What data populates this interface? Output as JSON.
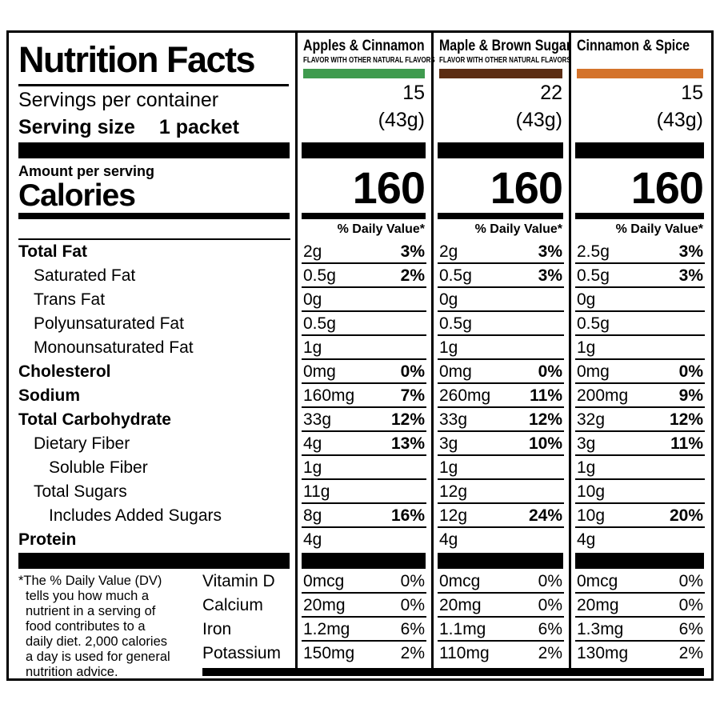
{
  "label": {
    "title": "Nutrition Facts",
    "servings_per_container_label": "Servings per container",
    "serving_size_label": "Serving size",
    "serving_size_value": "1 packet",
    "amount_per_serving": "Amount per serving",
    "calories_label": "Calories",
    "daily_value_header": "% Daily Value*",
    "footnote": "*The % Daily Value (DV)\ntells you how much a\nnutrient in a serving of\nfood contributes to a\ndaily diet. 2,000 calories\na day is used for general\nnutrition advice."
  },
  "flavors": [
    {
      "name": "Apples & Cinnamon",
      "subtitle": "FLAVOR WITH OTHER NATURAL FLAVORS",
      "color": "#3f9b4e",
      "servings": "15",
      "serving_weight": "(43g)",
      "calories": "160"
    },
    {
      "name": "Maple & Brown Sugar",
      "subtitle": "FLAVOR WITH OTHER NATURAL FLAVORS",
      "color": "#5b2d13",
      "servings": "22",
      "serving_weight": "(43g)",
      "calories": "160"
    },
    {
      "name": "Cinnamon & Spice",
      "subtitle": "",
      "color": "#d4732b",
      "servings": "15",
      "serving_weight": "(43g)",
      "calories": "160"
    }
  ],
  "nutrients": [
    {
      "name": "Total Fat",
      "bold": true,
      "indent": 0,
      "values": [
        {
          "amount": "2g",
          "dv": "3%"
        },
        {
          "amount": "2g",
          "dv": "3%"
        },
        {
          "amount": "2.5g",
          "dv": "3%"
        }
      ]
    },
    {
      "name": "Saturated Fat",
      "bold": false,
      "indent": 1,
      "values": [
        {
          "amount": "0.5g",
          "dv": "2%"
        },
        {
          "amount": "0.5g",
          "dv": "3%"
        },
        {
          "amount": "0.5g",
          "dv": "3%"
        }
      ]
    },
    {
      "name": "Trans Fat",
      "bold": false,
      "indent": 1,
      "values": [
        {
          "amount": "0g",
          "dv": ""
        },
        {
          "amount": "0g",
          "dv": ""
        },
        {
          "amount": "0g",
          "dv": ""
        }
      ]
    },
    {
      "name": "Polyunsaturated Fat",
      "bold": false,
      "indent": 1,
      "values": [
        {
          "amount": "0.5g",
          "dv": ""
        },
        {
          "amount": "0.5g",
          "dv": ""
        },
        {
          "amount": "0.5g",
          "dv": ""
        }
      ]
    },
    {
      "name": "Monounsaturated Fat",
      "bold": false,
      "indent": 1,
      "values": [
        {
          "amount": "1g",
          "dv": ""
        },
        {
          "amount": "1g",
          "dv": ""
        },
        {
          "amount": "1g",
          "dv": ""
        }
      ]
    },
    {
      "name": "Cholesterol",
      "bold": true,
      "indent": 0,
      "values": [
        {
          "amount": "0mg",
          "dv": "0%"
        },
        {
          "amount": "0mg",
          "dv": "0%"
        },
        {
          "amount": "0mg",
          "dv": "0%"
        }
      ]
    },
    {
      "name": "Sodium",
      "bold": true,
      "indent": 0,
      "values": [
        {
          "amount": "160mg",
          "dv": "7%"
        },
        {
          "amount": "260mg",
          "dv": "11%"
        },
        {
          "amount": "200mg",
          "dv": "9%"
        }
      ]
    },
    {
      "name": "Total Carbohydrate",
      "bold": true,
      "indent": 0,
      "values": [
        {
          "amount": "33g",
          "dv": "12%"
        },
        {
          "amount": "33g",
          "dv": "12%"
        },
        {
          "amount": "32g",
          "dv": "12%"
        }
      ]
    },
    {
      "name": "Dietary Fiber",
      "bold": false,
      "indent": 1,
      "values": [
        {
          "amount": "4g",
          "dv": "13%"
        },
        {
          "amount": "3g",
          "dv": "10%"
        },
        {
          "amount": "3g",
          "dv": "11%"
        }
      ]
    },
    {
      "name": "Soluble Fiber",
      "bold": false,
      "indent": 2,
      "values": [
        {
          "amount": "1g",
          "dv": ""
        },
        {
          "amount": "1g",
          "dv": ""
        },
        {
          "amount": "1g",
          "dv": ""
        }
      ]
    },
    {
      "name": "Total Sugars",
      "bold": false,
      "indent": 1,
      "values": [
        {
          "amount": "11g",
          "dv": ""
        },
        {
          "amount": "12g",
          "dv": ""
        },
        {
          "amount": "10g",
          "dv": ""
        }
      ]
    },
    {
      "name": "Includes Added Sugars",
      "bold": false,
      "indent": 2,
      "values": [
        {
          "amount": "8g",
          "dv": "16%"
        },
        {
          "amount": "12g",
          "dv": "24%"
        },
        {
          "amount": "10g",
          "dv": "20%"
        }
      ]
    },
    {
      "name": "Protein",
      "bold": true,
      "indent": 0,
      "values": [
        {
          "amount": "4g",
          "dv": ""
        },
        {
          "amount": "4g",
          "dv": ""
        },
        {
          "amount": "4g",
          "dv": ""
        }
      ]
    }
  ],
  "vitamins": [
    {
      "name": "Vitamin D",
      "values": [
        {
          "amount": "0mcg",
          "dv": "0%"
        },
        {
          "amount": "0mcg",
          "dv": "0%"
        },
        {
          "amount": "0mcg",
          "dv": "0%"
        }
      ]
    },
    {
      "name": "Calcium",
      "values": [
        {
          "amount": "20mg",
          "dv": "0%"
        },
        {
          "amount": "20mg",
          "dv": "0%"
        },
        {
          "amount": "20mg",
          "dv": "0%"
        }
      ]
    },
    {
      "name": "Iron",
      "values": [
        {
          "amount": "1.2mg",
          "dv": "6%"
        },
        {
          "amount": "1.1mg",
          "dv": "6%"
        },
        {
          "amount": "1.3mg",
          "dv": "6%"
        }
      ]
    },
    {
      "name": "Potassium",
      "values": [
        {
          "amount": "150mg",
          "dv": "2%"
        },
        {
          "amount": "110mg",
          "dv": "2%"
        },
        {
          "amount": "130mg",
          "dv": "2%"
        }
      ]
    }
  ]
}
